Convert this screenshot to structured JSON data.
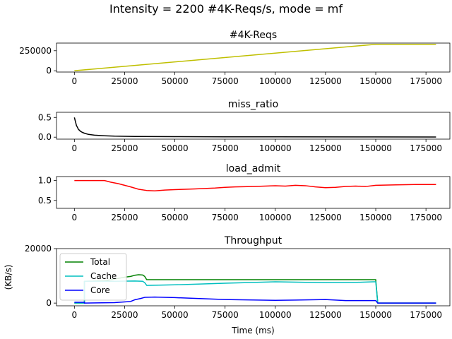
{
  "figure_title": "Intensity = 2200 #4K-Reqs/s, mode = mf",
  "chart_data": [
    {
      "type": "line",
      "title": "#4K-Reqs",
      "xlabel": "",
      "ylabel": "",
      "xlim": [
        -8900,
        186900
      ],
      "ylim": [
        -16000,
        345000
      ],
      "xticks": [
        0,
        25000,
        50000,
        75000,
        100000,
        125000,
        150000,
        175000
      ],
      "yticks": [
        0,
        250000
      ],
      "ytick_labels": [
        "0",
        "250000"
      ],
      "series": [
        {
          "color": "#bfbf00",
          "x": [
            0,
            150000,
            180000
          ],
          "y": [
            0,
            330000,
            330000
          ]
        }
      ]
    },
    {
      "type": "line",
      "title": "miss_ratio",
      "xlabel": "",
      "ylabel": "",
      "xlim": [
        -8900,
        186900
      ],
      "ylim": [
        -0.05,
        0.63
      ],
      "xticks": [
        0,
        25000,
        50000,
        75000,
        100000,
        125000,
        150000,
        175000
      ],
      "yticks": [
        0.0,
        0.5
      ],
      "ytick_labels": [
        "0.0",
        "0.5"
      ],
      "series": [
        {
          "color": "#000000",
          "x": [
            0,
            500,
            1000,
            2000,
            3000,
            4000,
            5000,
            7000,
            10000,
            15000,
            20000,
            30000,
            50000,
            75000,
            100000,
            150000,
            180000
          ],
          "y": [
            0.5,
            0.4,
            0.3,
            0.2,
            0.15,
            0.12,
            0.1,
            0.07,
            0.05,
            0.035,
            0.025,
            0.018,
            0.012,
            0.009,
            0.007,
            0.005,
            0.004
          ]
        }
      ]
    },
    {
      "type": "line",
      "title": "load_admit",
      "xlabel": "",
      "ylabel": "",
      "xlim": [
        -8900,
        186900
      ],
      "ylim": [
        0.3,
        1.1
      ],
      "xticks": [
        0,
        25000,
        50000,
        75000,
        100000,
        125000,
        150000,
        175000
      ],
      "yticks": [
        0.5,
        1.0
      ],
      "ytick_labels": [
        "0.5",
        "1.0"
      ],
      "series": [
        {
          "color": "#ff0000",
          "x": [
            0,
            15000,
            18000,
            22000,
            25000,
            28000,
            32000,
            36000,
            40000,
            45000,
            50000,
            55000,
            60000,
            65000,
            70000,
            75000,
            80000,
            90000,
            100000,
            105000,
            110000,
            115000,
            120000,
            125000,
            130000,
            135000,
            140000,
            145000,
            150000,
            160000,
            170000,
            180000
          ],
          "y": [
            1.0,
            1.0,
            0.96,
            0.92,
            0.88,
            0.84,
            0.78,
            0.75,
            0.74,
            0.76,
            0.77,
            0.78,
            0.79,
            0.8,
            0.81,
            0.83,
            0.84,
            0.85,
            0.87,
            0.86,
            0.88,
            0.87,
            0.84,
            0.82,
            0.83,
            0.85,
            0.86,
            0.85,
            0.88,
            0.89,
            0.9,
            0.9
          ]
        }
      ]
    },
    {
      "type": "line",
      "title": "Throughput",
      "xlabel": "Time (ms)",
      "ylabel": "(KB/s)",
      "xlim": [
        -8900,
        186900
      ],
      "ylim": [
        -1000,
        20000
      ],
      "xticks": [
        0,
        25000,
        50000,
        75000,
        100000,
        125000,
        150000,
        175000
      ],
      "yticks": [
        0,
        20000
      ],
      "ytick_labels": [
        "0",
        "20000"
      ],
      "legend_position": "top-left",
      "series": [
        {
          "name": "Total",
          "color": "#008000",
          "x": [
            0,
            5000,
            5001,
            15000,
            20000,
            25000,
            28000,
            30000,
            32000,
            34000,
            35000,
            36000,
            50000,
            75000,
            100000,
            125000,
            149000,
            150000,
            151000,
            180000
          ],
          "y": [
            0,
            0,
            8000,
            8200,
            8800,
            9500,
            9800,
            10200,
            10400,
            10300,
            9800,
            8600,
            8600,
            8600,
            8600,
            8600,
            8600,
            8600,
            0,
            0
          ]
        },
        {
          "name": "Cache",
          "color": "#00bfbf",
          "x": [
            0,
            5000,
            5001,
            20000,
            30000,
            34000,
            35000,
            36000,
            50000,
            75000,
            100000,
            125000,
            140000,
            149000,
            150000,
            151000,
            180000
          ],
          "y": [
            0,
            0,
            8000,
            8000,
            8100,
            8000,
            7500,
            6500,
            6700,
            7300,
            7800,
            7500,
            7600,
            7800,
            7800,
            0,
            0
          ]
        },
        {
          "name": "Core",
          "color": "#0000ff",
          "x": [
            0,
            5000,
            5001,
            20000,
            28000,
            30000,
            33000,
            35000,
            40000,
            50000,
            75000,
            100000,
            110000,
            125000,
            135000,
            149000,
            150000,
            151000,
            180000
          ],
          "y": [
            300,
            300,
            0,
            150,
            600,
            1200,
            1700,
            2100,
            2200,
            2000,
            1300,
            1000,
            1100,
            1300,
            900,
            900,
            900,
            0,
            0
          ]
        }
      ]
    }
  ]
}
